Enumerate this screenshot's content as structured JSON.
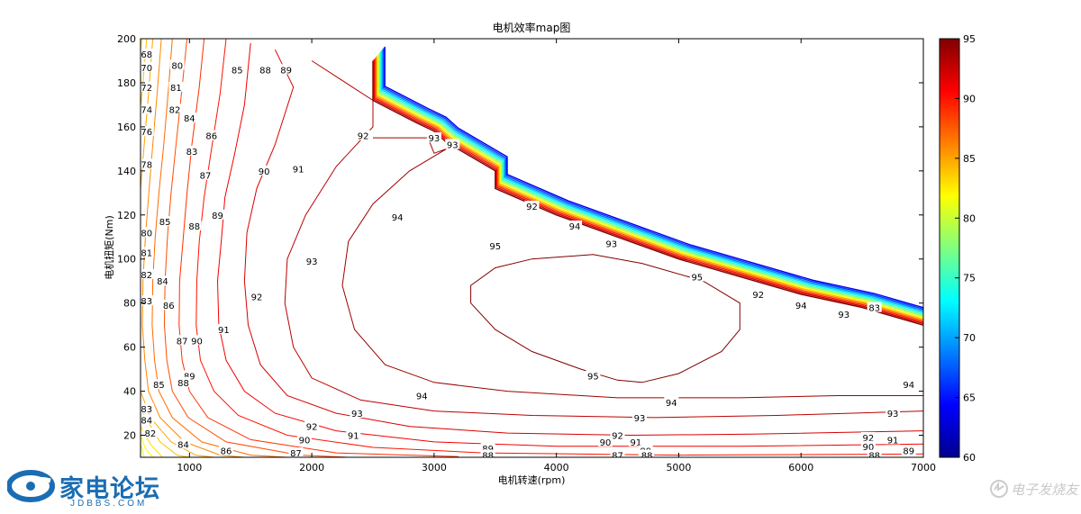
{
  "chart_data": {
    "type": "contour",
    "title": "电机效率map图",
    "xlabel": "电机转速(rpm)",
    "ylabel": "电机扭矩(Nm)",
    "xlim": [
      600,
      7000
    ],
    "ylim": [
      10,
      200
    ],
    "xticks": [
      1000,
      2000,
      3000,
      4000,
      5000,
      6000,
      7000
    ],
    "yticks": [
      20,
      40,
      60,
      80,
      100,
      120,
      140,
      160,
      180,
      200
    ],
    "colorbar": {
      "min": 60,
      "max": 95,
      "ticks": [
        60,
        65,
        70,
        75,
        80,
        85,
        90,
        95
      ],
      "colormap": "jet"
    },
    "grid": false,
    "contour_levels": [
      68,
      70,
      72,
      74,
      76,
      78,
      80,
      81,
      82,
      83,
      84,
      85,
      86,
      87,
      88,
      89,
      90,
      91,
      92,
      93,
      94,
      95
    ],
    "max_torque_boundary": [
      [
        2500,
        190
      ],
      [
        2500,
        172
      ],
      [
        2850,
        162
      ],
      [
        3000,
        158
      ],
      [
        3100,
        153
      ],
      [
        3500,
        140
      ],
      [
        3500,
        132
      ],
      [
        4000,
        120
      ],
      [
        4500,
        110
      ],
      [
        5000,
        100
      ],
      [
        5500,
        92
      ],
      [
        6000,
        84
      ],
      [
        6500,
        78
      ],
      [
        7000,
        70
      ]
    ],
    "contours": [
      {
        "level": 95,
        "points": [
          [
            4700,
            44
          ],
          [
            5000,
            48
          ],
          [
            5350,
            58
          ],
          [
            5500,
            68
          ],
          [
            5500,
            80
          ],
          [
            5200,
            90
          ],
          [
            4700,
            98
          ],
          [
            4300,
            102
          ],
          [
            3800,
            100
          ],
          [
            3500,
            96
          ],
          [
            3300,
            88
          ],
          [
            3300,
            80
          ],
          [
            3500,
            68
          ],
          [
            3800,
            58
          ],
          [
            4200,
            50
          ],
          [
            4500,
            45
          ],
          [
            4700,
            44
          ]
        ]
      },
      {
        "level": 94,
        "points": [
          [
            2500,
            155
          ],
          [
            2950,
            155
          ],
          [
            3000,
            148
          ],
          [
            3100,
            150
          ],
          [
            2800,
            140
          ],
          [
            2500,
            125
          ],
          [
            2300,
            108
          ],
          [
            2250,
            88
          ],
          [
            2350,
            68
          ],
          [
            2600,
            52
          ],
          [
            3000,
            44
          ],
          [
            3600,
            40
          ],
          [
            4500,
            37
          ],
          [
            5500,
            37
          ],
          [
            6300,
            38
          ],
          [
            7000,
            38
          ]
        ]
      },
      {
        "level": 93,
        "points": [
          [
            2000,
            190
          ],
          [
            2500,
            172
          ],
          [
            2500,
            160
          ],
          [
            2200,
            142
          ],
          [
            1950,
            120
          ],
          [
            1800,
            100
          ],
          [
            1780,
            80
          ],
          [
            1850,
            60
          ],
          [
            2000,
            46
          ],
          [
            2400,
            36
          ],
          [
            3000,
            31
          ],
          [
            3800,
            29
          ],
          [
            4800,
            28
          ],
          [
            5800,
            29
          ],
          [
            7000,
            31
          ]
        ]
      },
      {
        "level": 92,
        "points": [
          [
            1700,
            195
          ],
          [
            1850,
            178
          ],
          [
            1700,
            152
          ],
          [
            1550,
            132
          ],
          [
            1470,
            112
          ],
          [
            1450,
            90
          ],
          [
            1480,
            70
          ],
          [
            1580,
            52
          ],
          [
            1800,
            38
          ],
          [
            2200,
            30
          ],
          [
            2800,
            24
          ],
          [
            3600,
            21
          ],
          [
            4600,
            20
          ],
          [
            5600,
            20.5
          ],
          [
            7000,
            22
          ]
        ]
      },
      {
        "level": 91,
        "points": [
          [
            1500,
            198
          ],
          [
            1450,
            170
          ],
          [
            1370,
            148
          ],
          [
            1290,
            128
          ],
          [
            1260,
            108
          ],
          [
            1230,
            90
          ],
          [
            1240,
            70
          ],
          [
            1300,
            54
          ],
          [
            1450,
            40
          ],
          [
            1700,
            30
          ],
          [
            2200,
            22
          ],
          [
            3000,
            17
          ],
          [
            4000,
            15
          ],
          [
            5500,
            15
          ],
          [
            7000,
            16
          ]
        ]
      },
      {
        "level": 90,
        "points": [
          [
            1300,
            200
          ],
          [
            1250,
            175
          ],
          [
            1180,
            150
          ],
          [
            1120,
            128
          ],
          [
            1080,
            108
          ],
          [
            1060,
            90
          ],
          [
            1055,
            70
          ],
          [
            1090,
            54
          ],
          [
            1200,
            40
          ],
          [
            1400,
            29
          ],
          [
            1800,
            20
          ],
          [
            2500,
            14.5
          ],
          [
            3400,
            12
          ],
          [
            5000,
            11
          ],
          [
            7000,
            11.5
          ]
        ]
      },
      {
        "level": 89,
        "points": [
          [
            1120,
            200
          ],
          [
            1080,
            178
          ],
          [
            1020,
            152
          ],
          [
            980,
            130
          ],
          [
            950,
            110
          ],
          [
            920,
            90
          ],
          [
            915,
            70
          ],
          [
            940,
            54
          ],
          [
            1000,
            40
          ],
          [
            1150,
            28
          ],
          [
            1500,
            18
          ],
          [
            2200,
            12
          ],
          [
            3200,
            10.3
          ]
        ]
      },
      {
        "level": 88,
        "points": [
          [
            980,
            200
          ],
          [
            940,
            178
          ],
          [
            890,
            152
          ],
          [
            850,
            130
          ],
          [
            820,
            110
          ],
          [
            800,
            90
          ],
          [
            795,
            70
          ],
          [
            815,
            54
          ],
          [
            860,
            40
          ],
          [
            990,
            28
          ],
          [
            1300,
            17
          ],
          [
            1900,
            11
          ],
          [
            2300,
            10
          ]
        ]
      },
      {
        "level": 87,
        "points": [
          [
            860,
            200
          ],
          [
            830,
            178
          ],
          [
            790,
            152
          ],
          [
            750,
            130
          ],
          [
            720,
            110
          ],
          [
            700,
            90
          ],
          [
            695,
            70
          ],
          [
            715,
            54
          ],
          [
            750,
            40
          ],
          [
            860,
            28
          ],
          [
            1100,
            17
          ],
          [
            1500,
            11
          ],
          [
            1800,
            10
          ]
        ]
      },
      {
        "level": 86,
        "points": [
          [
            770,
            200
          ],
          [
            740,
            178
          ],
          [
            700,
            152
          ],
          [
            668,
            130
          ],
          [
            640,
            110
          ],
          [
            620,
            90
          ],
          [
            615,
            70
          ],
          [
            635,
            54
          ],
          [
            665,
            40
          ],
          [
            760,
            28
          ],
          [
            960,
            17
          ],
          [
            1250,
            11
          ],
          [
            1450,
            10
          ]
        ]
      },
      {
        "level": 85,
        "points": [
          [
            700,
            200
          ],
          [
            670,
            178
          ],
          [
            630,
            152
          ],
          [
            600,
            132
          ],
          [
            600,
            40
          ],
          [
            680,
            28
          ],
          [
            850,
            17
          ],
          [
            1050,
            11
          ],
          [
            1200,
            10
          ]
        ]
      },
      {
        "level": 84,
        "points": [
          [
            650,
            200
          ],
          [
            620,
            180
          ],
          [
            600,
            168
          ],
          [
            600,
            32
          ],
          [
            760,
            17
          ],
          [
            900,
            11
          ],
          [
            1000,
            10
          ]
        ]
      },
      {
        "level": 83,
        "points": [
          [
            610,
            200
          ],
          [
            600,
            195
          ],
          [
            600,
            24
          ],
          [
            680,
            16
          ],
          [
            780,
            10
          ]
        ]
      },
      {
        "level": 82,
        "points": [
          [
            600,
            20
          ],
          [
            640,
            14
          ],
          [
            700,
            10
          ]
        ]
      },
      {
        "level": 81,
        "points": [
          [
            600,
            16
          ],
          [
            630,
            10
          ]
        ]
      },
      {
        "level": 80,
        "points": [
          [
            600,
            200
          ],
          [
            600,
            200
          ]
        ]
      }
    ],
    "contour_labels": [
      {
        "text": "68",
        "x": 650,
        "y": 193
      },
      {
        "text": "70",
        "x": 650,
        "y": 187
      },
      {
        "text": "72",
        "x": 650,
        "y": 178
      },
      {
        "text": "74",
        "x": 650,
        "y": 168
      },
      {
        "text": "76",
        "x": 650,
        "y": 158
      },
      {
        "text": "78",
        "x": 650,
        "y": 143
      },
      {
        "text": "80",
        "x": 900,
        "y": 188
      },
      {
        "text": "81",
        "x": 890,
        "y": 178
      },
      {
        "text": "82",
        "x": 880,
        "y": 168
      },
      {
        "text": "84",
        "x": 1000,
        "y": 164
      },
      {
        "text": "83",
        "x": 1020,
        "y": 149
      },
      {
        "text": "85",
        "x": 1390,
        "y": 186
      },
      {
        "text": "86",
        "x": 1180,
        "y": 156
      },
      {
        "text": "87",
        "x": 1130,
        "y": 138
      },
      {
        "text": "88",
        "x": 1620,
        "y": 186
      },
      {
        "text": "89",
        "x": 1790,
        "y": 186
      },
      {
        "text": "88",
        "x": 1040,
        "y": 115
      },
      {
        "text": "89",
        "x": 1230,
        "y": 120
      },
      {
        "text": "90",
        "x": 1610,
        "y": 140
      },
      {
        "text": "91",
        "x": 1890,
        "y": 141
      },
      {
        "text": "92",
        "x": 2420,
        "y": 156
      },
      {
        "text": "85",
        "x": 800,
        "y": 117
      },
      {
        "text": "80",
        "x": 650,
        "y": 112
      },
      {
        "text": "81",
        "x": 650,
        "y": 103
      },
      {
        "text": "82",
        "x": 650,
        "y": 93
      },
      {
        "text": "84",
        "x": 780,
        "y": 90
      },
      {
        "text": "83",
        "x": 650,
        "y": 81
      },
      {
        "text": "86",
        "x": 830,
        "y": 79
      },
      {
        "text": "87",
        "x": 940,
        "y": 63
      },
      {
        "text": "90",
        "x": 1060,
        "y": 63
      },
      {
        "text": "91",
        "x": 1280,
        "y": 68
      },
      {
        "text": "92",
        "x": 1550,
        "y": 83
      },
      {
        "text": "93",
        "x": 2000,
        "y": 99
      },
      {
        "text": "94",
        "x": 2700,
        "y": 119
      },
      {
        "text": "95",
        "x": 3500,
        "y": 106
      },
      {
        "text": "95",
        "x": 4300,
        "y": 47
      },
      {
        "text": "94",
        "x": 2900,
        "y": 38
      },
      {
        "text": "93",
        "x": 2370,
        "y": 30
      },
      {
        "text": "92",
        "x": 2000,
        "y": 24
      },
      {
        "text": "91",
        "x": 2340,
        "y": 20
      },
      {
        "text": "90",
        "x": 1940,
        "y": 18
      },
      {
        "text": "89",
        "x": 1000,
        "y": 47
      },
      {
        "text": "88",
        "x": 950,
        "y": 44
      },
      {
        "text": "85",
        "x": 750,
        "y": 43
      },
      {
        "text": "83",
        "x": 650,
        "y": 32
      },
      {
        "text": "84",
        "x": 650,
        "y": 27
      },
      {
        "text": "82",
        "x": 680,
        "y": 21
      },
      {
        "text": "84",
        "x": 950,
        "y": 16
      },
      {
        "text": "86",
        "x": 1300,
        "y": 13
      },
      {
        "text": "87",
        "x": 1870,
        "y": 12
      },
      {
        "text": "89",
        "x": 3440,
        "y": 14
      },
      {
        "text": "88",
        "x": 3440,
        "y": 11
      },
      {
        "text": "92",
        "x": 4500,
        "y": 20
      },
      {
        "text": "90",
        "x": 4400,
        "y": 17
      },
      {
        "text": "91",
        "x": 4650,
        "y": 17
      },
      {
        "text": "87",
        "x": 4500,
        "y": 11
      },
      {
        "text": "89",
        "x": 4730,
        "y": 13
      },
      {
        "text": "88",
        "x": 4740,
        "y": 11
      },
      {
        "text": "94",
        "x": 4940,
        "y": 35
      },
      {
        "text": "93",
        "x": 4680,
        "y": 28
      },
      {
        "text": "93",
        "x": 6750,
        "y": 30
      },
      {
        "text": "92",
        "x": 6550,
        "y": 19
      },
      {
        "text": "91",
        "x": 6750,
        "y": 18
      },
      {
        "text": "90",
        "x": 6550,
        "y": 15
      },
      {
        "text": "88",
        "x": 6600,
        "y": 11
      },
      {
        "text": "89",
        "x": 6880,
        "y": 13
      },
      {
        "text": "94",
        "x": 6880,
        "y": 43
      },
      {
        "text": "92",
        "x": 3800,
        "y": 124
      },
      {
        "text": "94",
        "x": 4150,
        "y": 115
      },
      {
        "text": "93",
        "x": 4450,
        "y": 107
      },
      {
        "text": "95",
        "x": 5150,
        "y": 92
      },
      {
        "text": "92",
        "x": 5650,
        "y": 84
      },
      {
        "text": "94",
        "x": 6000,
        "y": 79
      },
      {
        "text": "93",
        "x": 6350,
        "y": 75
      },
      {
        "text": "93",
        "x": 3000,
        "y": 155
      },
      {
        "text": "93",
        "x": 3150,
        "y": 152
      },
      {
        "text": "83",
        "x": 6600,
        "y": 78
      }
    ]
  },
  "branding": {
    "logo_text": "家电论坛",
    "logo_sub": "JDBBS.COM",
    "watermark_text": "电子发烧友"
  }
}
